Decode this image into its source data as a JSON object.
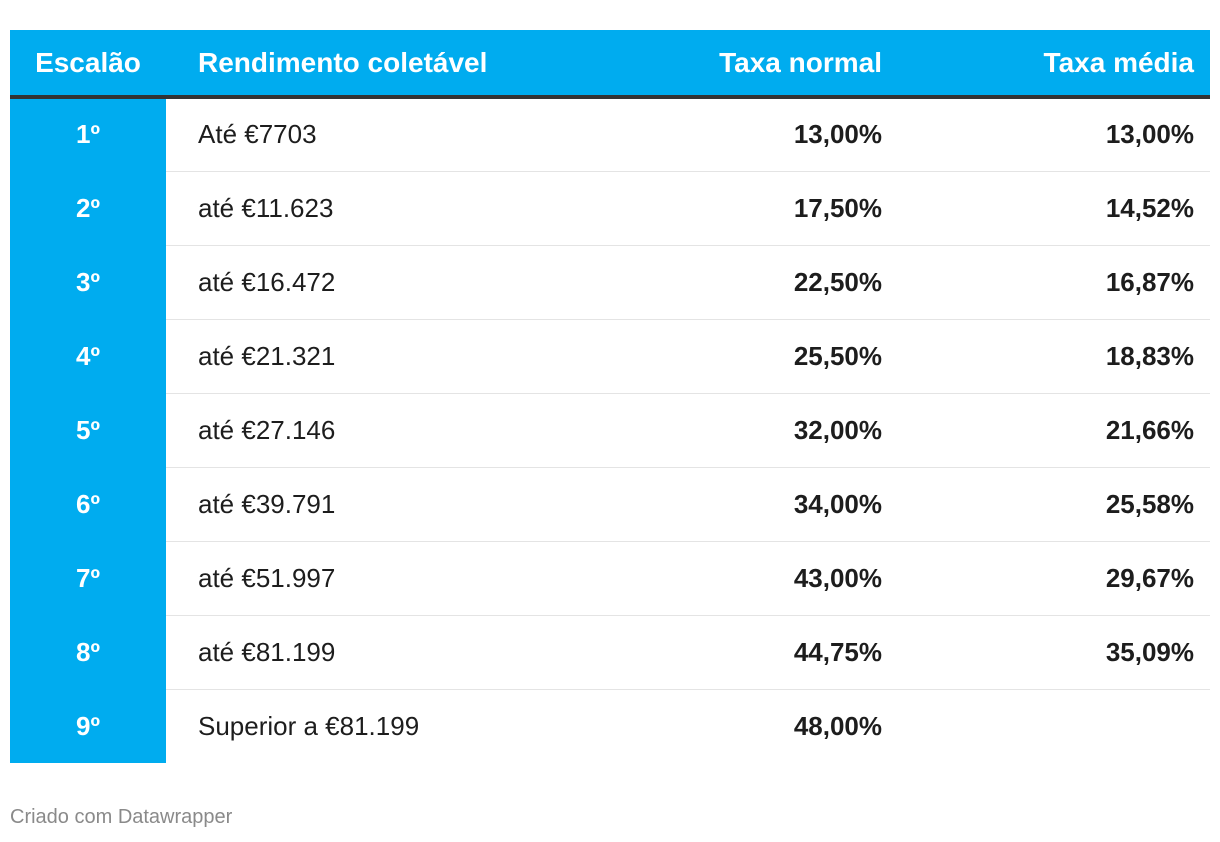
{
  "chart_data": {
    "type": "table",
    "columns": [
      "Escalão",
      "Rendimento coletável",
      "Taxa normal",
      "Taxa média"
    ],
    "rows": [
      [
        "1º",
        "Até €7703",
        "13,00%",
        "13,00%"
      ],
      [
        "2º",
        "até €11.623",
        "17,50%",
        "14,52%"
      ],
      [
        "3º",
        "até €16.472",
        "22,50%",
        "16,87%"
      ],
      [
        "4º",
        "até €21.321",
        "25,50%",
        "18,83%"
      ],
      [
        "5º",
        "até €27.146",
        "32,00%",
        "21,66%"
      ],
      [
        "6º",
        "até €39.791",
        "34,00%",
        "25,58%"
      ],
      [
        "7º",
        "até €51.997",
        "43,00%",
        "29,67%"
      ],
      [
        "8º",
        "até €81.199",
        "44,75%",
        "35,09%"
      ],
      [
        "9º",
        "Superior a €81.199",
        "48,00%",
        ""
      ]
    ]
  },
  "footer": {
    "credit": "Criado com Datawrapper"
  },
  "colors": {
    "accent": "#00acef",
    "header_rule": "#333333",
    "row_divider": "#e4e4e4"
  }
}
